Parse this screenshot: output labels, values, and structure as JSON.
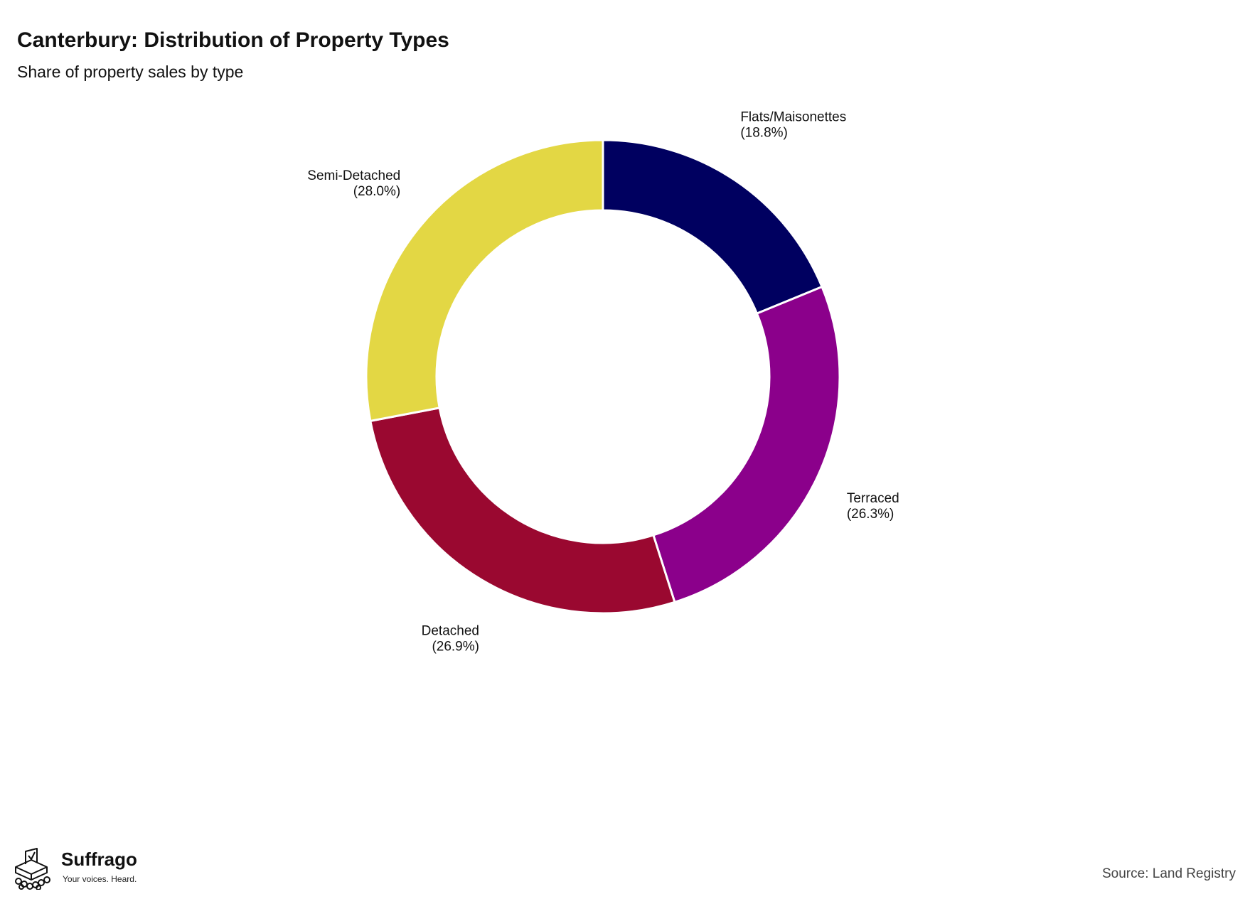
{
  "chart_data": {
    "type": "pie",
    "variant": "donut",
    "title": "Canterbury: Distribution of Property Types",
    "subtitle": "Share of property sales by type",
    "start_angle": "top (12 o'clock)",
    "direction": "clockwise",
    "grid": false,
    "legend": "none (direct labels)",
    "slices": [
      {
        "name": "Flats/Maisonettes",
        "value": 18.8,
        "label": "(18.8%)",
        "color": "#000060"
      },
      {
        "name": "Terraced",
        "value": 26.3,
        "label": "(26.3%)",
        "color": "#8B008B"
      },
      {
        "name": "Detached",
        "value": 26.9,
        "label": "(26.9%)",
        "color": "#9A0830"
      },
      {
        "name": "Semi-Detached",
        "value": 28.0,
        "label": "(28.0%)",
        "color": "#E3D744"
      }
    ]
  },
  "footer": {
    "brand_name": "Suffrago",
    "brand_tagline": "Your voices. Heard.",
    "source": "Source: Land Registry"
  }
}
